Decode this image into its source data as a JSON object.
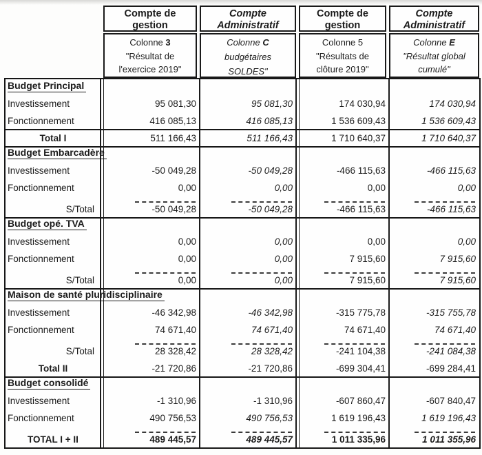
{
  "table": {
    "columns": [
      {
        "title_lines": [
          "Compte de",
          "gestion"
        ],
        "italic": false,
        "colonne_prefix": "Colonne ",
        "colonne_key": "3",
        "colonne_key_bold": true,
        "desc_lines": [
          "\"Résultat de",
          "l'exercice 2019\""
        ]
      },
      {
        "title_lines": [
          "Compte",
          "Administratif"
        ],
        "italic": true,
        "colonne_prefix": "Colonne ",
        "colonne_key": "C",
        "colonne_key_bold": true,
        "desc_lines": [
          "budgétaires",
          "SOLDES\""
        ]
      },
      {
        "title_lines": [
          "Compte de",
          "gestion"
        ],
        "italic": false,
        "colonne_prefix": "Colonne ",
        "colonne_key": "5",
        "colonne_key_bold": false,
        "desc_lines": [
          "\"Résultats de",
          "clôture 2019\""
        ]
      },
      {
        "title_lines": [
          "Compte",
          "Administratif"
        ],
        "italic": true,
        "colonne_prefix": "Colonne ",
        "colonne_key": "E",
        "colonne_key_bold": true,
        "desc_lines": [
          "\"Résultat global",
          "cumulé\""
        ]
      }
    ],
    "rows": [
      {
        "kind": "section",
        "title": "Budget Principal",
        "line_above": false
      },
      {
        "kind": "data",
        "label": "Investissement",
        "values": [
          "95 081,30",
          "95 081,30",
          "174 030,94",
          "174 030,94"
        ],
        "italic": [
          false,
          true,
          false,
          true
        ]
      },
      {
        "kind": "data",
        "label": "Fonctionnement",
        "values": [
          "416 085,13",
          "416 085,13",
          "1 536 609,43",
          "1 536 609,43"
        ],
        "italic": [
          false,
          true,
          false,
          true
        ]
      },
      {
        "kind": "data",
        "label": "Total I",
        "label_style": "total-center",
        "line_above": true,
        "values": [
          "511 166,43",
          "511 166,43",
          "1 710 640,37",
          "1 710 640,37"
        ],
        "italic": [
          false,
          true,
          false,
          true
        ]
      },
      {
        "kind": "section",
        "title": "Budget Embarcadère",
        "line_above": true
      },
      {
        "kind": "data",
        "label": "Investissement",
        "values": [
          "-50 049,28",
          "-50 049,28",
          "-466 115,63",
          "-466 115,63"
        ],
        "italic": [
          false,
          true,
          false,
          true
        ]
      },
      {
        "kind": "data",
        "label": "Fonctionnement",
        "values": [
          "0,00",
          "0,00",
          "0,00",
          "0,00"
        ],
        "italic": [
          false,
          true,
          false,
          true
        ]
      },
      {
        "kind": "data",
        "label": "S/Total",
        "label_style": "right",
        "dashed": true,
        "values": [
          "-50 049,28",
          "-50 049,28",
          "-466 115,63",
          "-466 115,63"
        ],
        "italic": [
          false,
          true,
          false,
          true
        ]
      },
      {
        "kind": "section",
        "title": "Budget opé. TVA",
        "line_above": true
      },
      {
        "kind": "data",
        "label": "Investissement",
        "values": [
          "0,00",
          "0,00",
          "0,00",
          "0,00"
        ],
        "italic": [
          false,
          true,
          false,
          true
        ]
      },
      {
        "kind": "data",
        "label": "Fonctionnement",
        "values": [
          "0,00",
          "0,00",
          "7 915,60",
          "7 915,60"
        ],
        "italic": [
          false,
          true,
          false,
          true
        ]
      },
      {
        "kind": "data",
        "label": "S/Total",
        "label_style": "right",
        "dashed": true,
        "values": [
          "0,00",
          "0,00",
          "7 915,60",
          "7 915,60"
        ],
        "italic": [
          false,
          true,
          false,
          true
        ]
      },
      {
        "kind": "section",
        "title": "Maison de santé pluridisciplinaire",
        "line_above": true
      },
      {
        "kind": "data",
        "label": "Investissement",
        "values": [
          "-46 342,98",
          "-46 342,98",
          "-315 775,78",
          "-315 755,78"
        ],
        "italic": [
          false,
          true,
          false,
          true
        ]
      },
      {
        "kind": "data",
        "label": "Fonctionnement",
        "values": [
          "74 671,40",
          "74 671,40",
          "74 671,40",
          "74 671,40"
        ],
        "italic": [
          false,
          true,
          false,
          true
        ]
      },
      {
        "kind": "data",
        "label": "S/Total",
        "label_style": "right",
        "dashed": true,
        "values": [
          "28 328,42",
          "28 328,42",
          "-241 104,38",
          "-241 084,38"
        ],
        "italic": [
          false,
          true,
          false,
          true
        ]
      },
      {
        "kind": "data",
        "label": "Total II",
        "label_style": "total-center",
        "values": [
          "-21 720,86",
          "-21 720,86",
          "-699 304,41",
          "-699 284,41"
        ],
        "italic": [
          false,
          false,
          false,
          false
        ]
      },
      {
        "kind": "section",
        "title": "Budget consolidé",
        "line_above": true
      },
      {
        "kind": "data",
        "label": "Investissement",
        "values": [
          "-1 310,96",
          "-1 310,96",
          "-607 860,47",
          "-607 840,47"
        ],
        "italic": [
          false,
          false,
          false,
          false
        ]
      },
      {
        "kind": "data",
        "label": "Fonctionnement",
        "values": [
          "490 756,53",
          "490 756,53",
          "1 619 196,43",
          "1 619 196,43"
        ],
        "italic": [
          false,
          true,
          false,
          true
        ]
      },
      {
        "kind": "data",
        "label": "TOTAL I + II",
        "label_style": "total-center",
        "dashed": true,
        "bold_values": true,
        "values": [
          "489 445,57",
          "489 445,57",
          "1 011 335,96",
          "1 011 355,96"
        ],
        "italic": [
          false,
          true,
          false,
          true
        ]
      }
    ]
  }
}
